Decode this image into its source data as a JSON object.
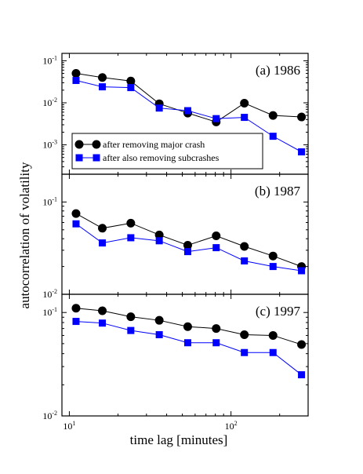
{
  "figure": {
    "ylabel": "autocorrelation of volatility",
    "xlabel": "time lag [minutes]",
    "xticks": [
      {
        "value": 10,
        "label_base": "10",
        "label_exp": "1"
      },
      {
        "value": 100,
        "label_base": "10",
        "label_exp": "2"
      }
    ]
  },
  "legend": {
    "entries": [
      {
        "label": "after removing major crash",
        "color": "#000000",
        "marker": "circle"
      },
      {
        "label": "after also removing subcrashes",
        "color": "#0000ff",
        "marker": "square"
      }
    ]
  },
  "chart_data": [
    {
      "type": "line",
      "title": "(a) 1986",
      "xscale": "log",
      "yscale": "log",
      "xlim": [
        9,
        300
      ],
      "ylim": [
        0.0002,
        0.15
      ],
      "yticks": [
        {
          "value": 0.1,
          "label_base": "10",
          "label_exp": "-1"
        },
        {
          "value": 0.01,
          "label_base": "10",
          "label_exp": "-2"
        },
        {
          "value": 0.001,
          "label_base": "10",
          "label_exp": "-3"
        }
      ],
      "x": [
        11,
        16,
        24,
        36,
        54,
        81,
        121,
        182,
        273
      ],
      "series": [
        {
          "name": "after removing major crash",
          "color": "#000000",
          "marker": "circle",
          "values": [
            0.05,
            0.04,
            0.033,
            0.0095,
            0.0057,
            0.0035,
            0.0098,
            0.005,
            0.0046
          ]
        },
        {
          "name": "after also removing subcrashes",
          "color": "#0000ff",
          "marker": "square",
          "values": [
            0.034,
            0.024,
            0.023,
            0.0075,
            0.0065,
            0.0042,
            0.0045,
            0.0016,
            0.00068
          ]
        }
      ]
    },
    {
      "type": "line",
      "title": "(b) 1987",
      "xscale": "log",
      "yscale": "log",
      "xlim": [
        9,
        300
      ],
      "ylim": [
        0.01,
        0.2
      ],
      "yticks": [
        {
          "value": 0.1,
          "label_base": "10",
          "label_exp": "-1"
        },
        {
          "value": 0.01,
          "label_base": "10",
          "label_exp": "-2"
        }
      ],
      "x": [
        11,
        16,
        24,
        36,
        54,
        81,
        121,
        182,
        273
      ],
      "series": [
        {
          "name": "after removing major crash",
          "color": "#000000",
          "marker": "circle",
          "values": [
            0.075,
            0.052,
            0.059,
            0.044,
            0.034,
            0.043,
            0.033,
            0.026,
            0.02
          ]
        },
        {
          "name": "after also removing subcrashes",
          "color": "#0000ff",
          "marker": "square",
          "values": [
            0.058,
            0.036,
            0.041,
            0.038,
            0.029,
            0.032,
            0.023,
            0.02,
            0.018
          ]
        }
      ]
    },
    {
      "type": "line",
      "title": "(c) 1997",
      "xscale": "log",
      "yscale": "log",
      "xlim": [
        9,
        300
      ],
      "ylim": [
        0.01,
        0.15
      ],
      "yticks": [
        {
          "value": 0.1,
          "label_base": "10",
          "label_exp": "-1"
        },
        {
          "value": 0.01,
          "label_base": "10",
          "label_exp": "-2"
        }
      ],
      "x": [
        11,
        16,
        24,
        36,
        54,
        81,
        121,
        182,
        273
      ],
      "series": [
        {
          "name": "after removing major crash",
          "color": "#000000",
          "marker": "circle",
          "values": [
            0.11,
            0.104,
            0.091,
            0.084,
            0.073,
            0.07,
            0.061,
            0.06,
            0.049
          ]
        },
        {
          "name": "after also removing subcrashes",
          "color": "#0000ff",
          "marker": "square",
          "values": [
            0.082,
            0.079,
            0.067,
            0.061,
            0.051,
            0.051,
            0.041,
            0.041,
            0.025
          ]
        }
      ]
    }
  ]
}
